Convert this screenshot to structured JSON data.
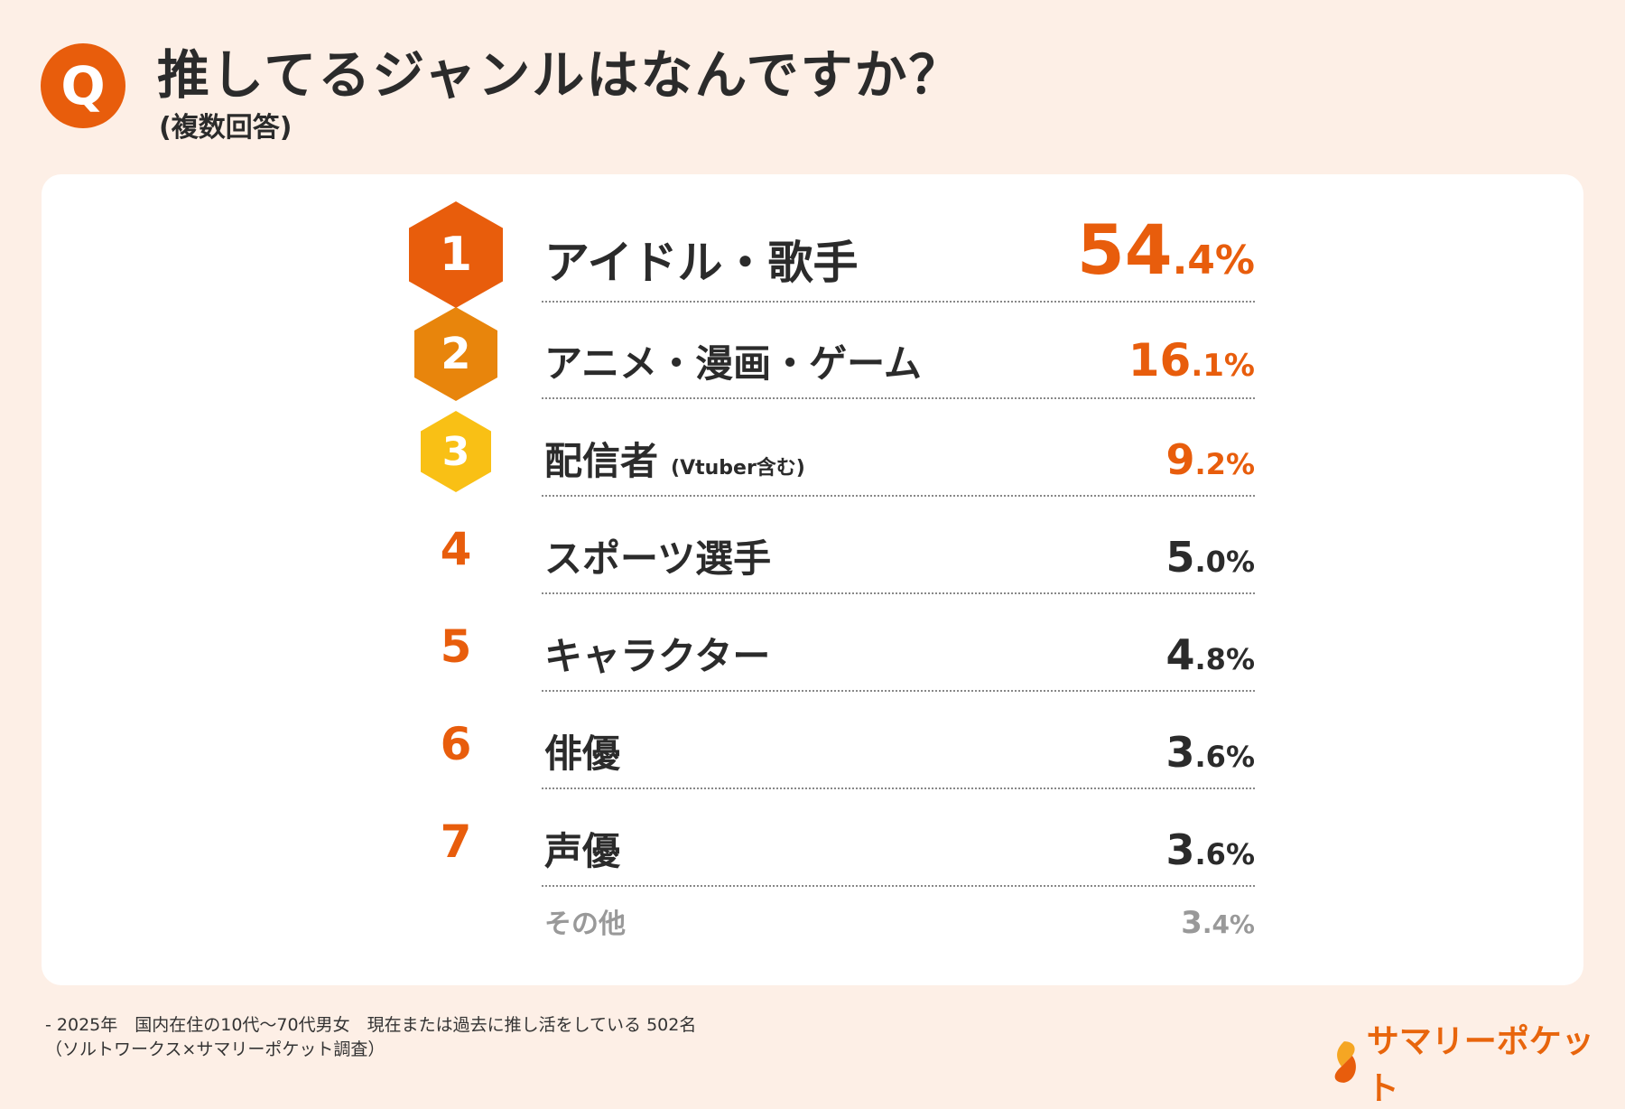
{
  "header": {
    "q_badge": "Q",
    "title": "推してるジャンルはなんですか？",
    "subtitle": "(複数回答)"
  },
  "colors": {
    "accent": "#E85D0C",
    "rank2": "#E8850C",
    "rank3": "#F9C015",
    "background": "#FDEFE6",
    "muted": "#999999"
  },
  "rows": [
    {
      "rank": "1",
      "label": "アイドル・歌手",
      "note": "",
      "pct_int": "54",
      "pct_dec": ".4%",
      "value": 54.4
    },
    {
      "rank": "2",
      "label": "アニメ・漫画・ゲーム",
      "note": "",
      "pct_int": "16",
      "pct_dec": ".1%",
      "value": 16.1
    },
    {
      "rank": "3",
      "label": "配信者",
      "note": "(Vtuber含む)",
      "pct_int": "9",
      "pct_dec": ".2%",
      "value": 9.2
    },
    {
      "rank": "4",
      "label": "スポーツ選手",
      "note": "",
      "pct_int": "5",
      "pct_dec": ".0%",
      "value": 5.0
    },
    {
      "rank": "5",
      "label": "キャラクター",
      "note": "",
      "pct_int": "4",
      "pct_dec": ".8%",
      "value": 4.8
    },
    {
      "rank": "6",
      "label": "俳優",
      "note": "",
      "pct_int": "3",
      "pct_dec": ".6%",
      "value": 3.6
    },
    {
      "rank": "7",
      "label": "声優",
      "note": "",
      "pct_int": "3",
      "pct_dec": ".6%",
      "value": 3.6
    }
  ],
  "other": {
    "label": "その他",
    "pct_int": "3",
    "pct_dec": ".4%",
    "value": 3.4
  },
  "footer": {
    "line1": "- 2025年　国内在住の10代〜70代男女　現在または過去に推し活をしている 502名",
    "line2": "（ソルトワークス×サマリーポケット調査）"
  },
  "logo": {
    "text": "サマリーポケット"
  }
}
